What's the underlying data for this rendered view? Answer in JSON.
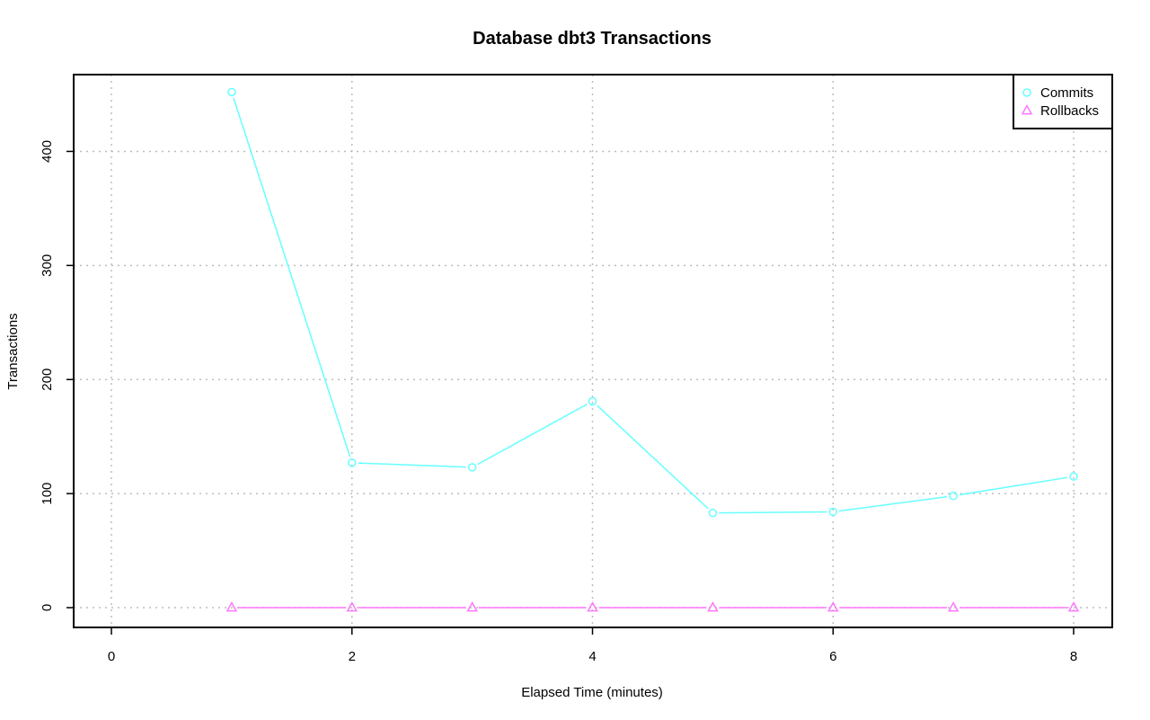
{
  "chart_data": {
    "type": "line",
    "title": "Database dbt3 Transactions",
    "xlabel": "Elapsed Time (minutes)",
    "ylabel": "Transactions",
    "xlim": [
      0,
      8
    ],
    "ylim": [
      0,
      450
    ],
    "x_ticks": [
      0,
      2,
      4,
      6,
      8
    ],
    "y_ticks": [
      0,
      100,
      200,
      300,
      400
    ],
    "grid": true,
    "legend_position": "top-right",
    "x": [
      1,
      2,
      3,
      4,
      5,
      6,
      7,
      8
    ],
    "series": [
      {
        "name": "Commits",
        "color": "#66FFFF",
        "marker": "circle",
        "values": [
          452,
          127,
          123,
          181,
          83,
          84,
          98,
          115
        ]
      },
      {
        "name": "Rollbacks",
        "color": "#FF77FF",
        "marker": "triangle",
        "values": [
          0,
          0,
          0,
          0,
          0,
          0,
          0,
          0
        ]
      }
    ]
  }
}
